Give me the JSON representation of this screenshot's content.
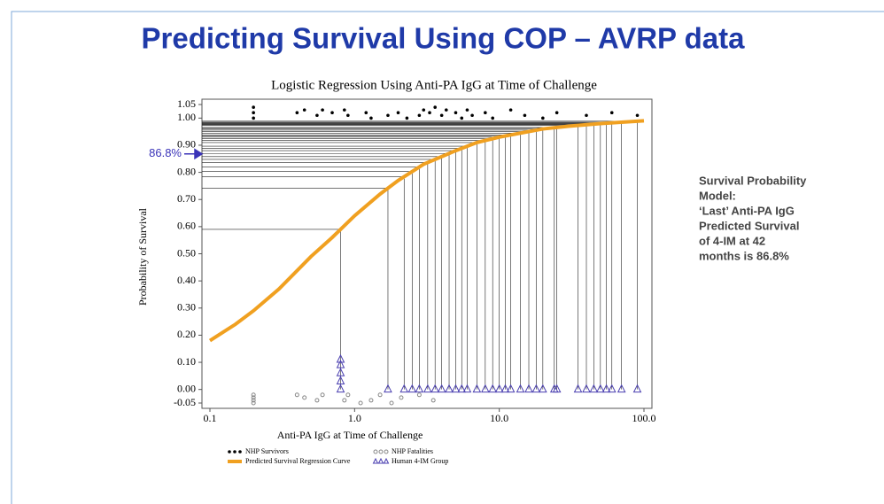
{
  "slide_title": "Predicting Survival Using COP – AVRP data",
  "side_text": [
    "Survival Probability",
    "Model:",
    "‘Last’ Anti-PA IgG",
    "Predicted Survival",
    "of 4-IM at 42",
    "months is 86.8%"
  ],
  "chart_data": {
    "type": "scatter",
    "title": "Logistic Regression Using Anti-PA IgG at Time of Challenge",
    "x_label": "Anti-PA IgG at Time of Challenge",
    "y_label": "Probability of Survival",
    "log_x": true,
    "xlim": [
      0.1,
      100
    ],
    "xticks": [
      0.1,
      {
        "value": 1,
        "label": "1.0"
      },
      {
        "value": 10,
        "label": "10.0"
      },
      {
        "value": 100,
        "label": "100.0"
      }
    ],
    "ylim": [
      -0.05,
      1.05
    ],
    "yticks": [
      1.05,
      {
        "value": 1,
        "label": "1.00"
      },
      {
        "value": 0.9,
        "label": "0.90"
      },
      {
        "value": 0.8,
        "label": "0.80"
      },
      {
        "value": 0.7,
        "label": "0.70"
      },
      {
        "value": 0.6,
        "label": "0.60"
      },
      {
        "value": 0.5,
        "label": "0.50"
      },
      {
        "value": 0.4,
        "label": "0.40"
      },
      {
        "value": 0.3,
        "label": "0.30"
      },
      {
        "value": 0.2,
        "label": "0.20"
      },
      {
        "value": 0.1,
        "label": "0.10"
      },
      {
        "value": 0,
        "label": "0.00"
      },
      -0.05
    ],
    "annotation": {
      "label": "86.8%",
      "value": 0.868,
      "color": "#3a33b8"
    },
    "series": [
      {
        "name": "NHP Survivors",
        "kind": "dot",
        "color": "#000000",
        "x": [
          0.2,
          0.2,
          0.2,
          0.4,
          0.45,
          0.55,
          0.6,
          0.7,
          0.85,
          0.9,
          1.2,
          1.3,
          1.7,
          2,
          2.3,
          2.8,
          3,
          3.3,
          3.6,
          4,
          4.3,
          5,
          5.5,
          6,
          6.5,
          8,
          9,
          12,
          15,
          20,
          25,
          40,
          60,
          90
        ],
        "y": [
          1.0,
          1.02,
          1.04,
          1.02,
          1.03,
          1.01,
          1.03,
          1.02,
          1.03,
          1.01,
          1.02,
          1.0,
          1.01,
          1.02,
          1.0,
          1.01,
          1.03,
          1.02,
          1.04,
          1.01,
          1.03,
          1.02,
          1.0,
          1.03,
          1.01,
          1.02,
          1.0,
          1.03,
          1.01,
          1.0,
          1.02,
          1.01,
          1.02,
          1.01
        ]
      },
      {
        "name": "Predicted Survival Regression Curve",
        "kind": "line",
        "color": "#f0a020",
        "x": [
          0.1,
          0.15,
          0.2,
          0.3,
          0.5,
          0.7,
          1,
          1.5,
          2,
          3,
          5,
          7,
          10,
          20,
          30,
          50,
          100
        ],
        "y": [
          0.18,
          0.24,
          0.29,
          0.37,
          0.49,
          0.56,
          0.64,
          0.72,
          0.77,
          0.83,
          0.88,
          0.91,
          0.93,
          0.96,
          0.97,
          0.98,
          0.99
        ]
      },
      {
        "name": "NHP Fatalities",
        "kind": "circle",
        "color": "#888888",
        "x": [
          0.2,
          0.2,
          0.2,
          0.2,
          0.4,
          0.45,
          0.55,
          0.6,
          0.85,
          0.9,
          1.1,
          1.3,
          1.5,
          1.8,
          2.1,
          2.8,
          3.5
        ],
        "y": [
          -0.02,
          -0.03,
          -0.04,
          -0.05,
          -0.02,
          -0.03,
          -0.04,
          -0.02,
          -0.04,
          -0.02,
          -0.05,
          -0.04,
          -0.02,
          -0.05,
          -0.03,
          -0.02,
          -0.04
        ]
      },
      {
        "name": "Human 4-IM Group",
        "kind": "triangle",
        "color": "#4a3fb0",
        "x": [
          0.8,
          0.8,
          0.8,
          0.8,
          0.8,
          1.7,
          2.2,
          2.5,
          2.8,
          3.2,
          3.6,
          4,
          4.5,
          5,
          5.5,
          6,
          7,
          8,
          9,
          10,
          11,
          12,
          14,
          16,
          18,
          20,
          24,
          25,
          35,
          40,
          45,
          50,
          55,
          60,
          70,
          90
        ],
        "y": [
          0,
          0.03,
          0.06,
          0.09,
          0.11,
          0,
          0,
          0,
          0,
          0,
          0,
          0,
          0,
          0,
          0,
          0,
          0,
          0,
          0,
          0,
          0,
          0,
          0,
          0,
          0,
          0,
          0,
          0,
          0,
          0,
          0,
          0,
          0,
          0,
          0,
          0
        ]
      }
    ]
  }
}
